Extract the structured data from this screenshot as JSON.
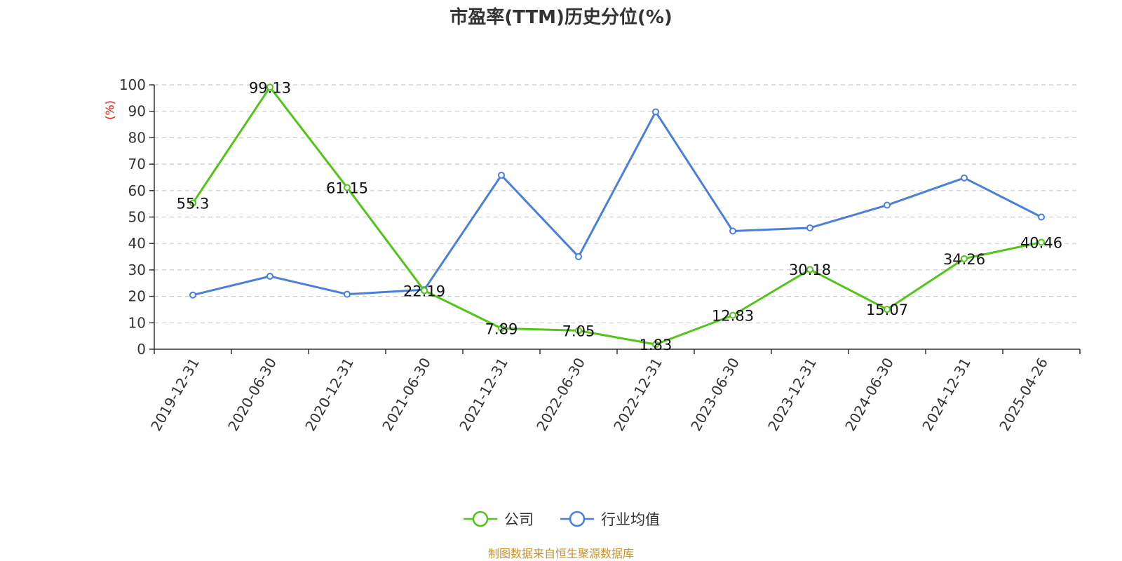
{
  "chart_data": {
    "type": "line",
    "title": "市盈率(TTM)历史分位(%)",
    "ylabel": "(%)",
    "xlabel": "",
    "ylim": [
      0,
      100
    ],
    "yticks": [
      0,
      10,
      20,
      30,
      40,
      50,
      60,
      70,
      80,
      90,
      100
    ],
    "grid": true,
    "legend_position": "bottom",
    "categories": [
      "2019-12-31",
      "2020-06-30",
      "2020-12-31",
      "2021-06-30",
      "2021-12-31",
      "2022-06-30",
      "2022-12-31",
      "2023-06-30",
      "2023-12-31",
      "2024-06-30",
      "2024-12-31",
      "2025-04-26"
    ],
    "series": [
      {
        "name": "公司",
        "color": "#52c41a",
        "values": [
          55.3,
          99.13,
          61.15,
          22.19,
          7.89,
          7.05,
          1.83,
          12.83,
          30.18,
          15.07,
          34.26,
          40.46
        ],
        "data_labels": [
          "55.3",
          "99.13",
          "61.15",
          "22.19",
          "7.89",
          "7.05",
          "1.83",
          "12.83",
          "30.18",
          "15.07",
          "34.26",
          "40.46"
        ]
      },
      {
        "name": "行业均值",
        "color": "#4a7fdb",
        "values": [
          20.5,
          27.6,
          20.8,
          22.5,
          65.8,
          35.0,
          89.8,
          44.7,
          45.9,
          54.5,
          64.8,
          50.0
        ]
      }
    ],
    "source": "制图数据来自恒生聚源数据库"
  }
}
